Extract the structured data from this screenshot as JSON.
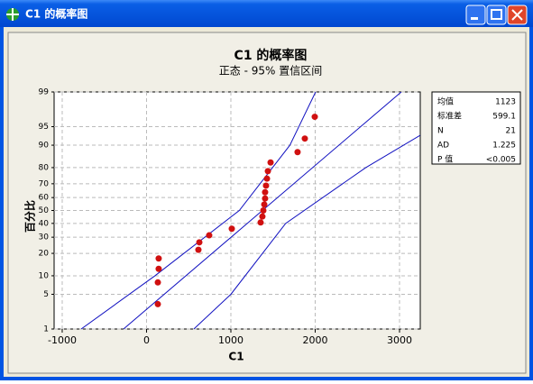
{
  "window": {
    "title": "C1 的概率图"
  },
  "chart_data": {
    "type": "probability",
    "title": "C1 的概率图",
    "subtitle": "正态 - 95% 置信区间",
    "x_label": "C1",
    "y_label": "百分比",
    "xlim": [
      -1096,
      3246
    ],
    "xticks": [
      -1000,
      0,
      1000,
      2000,
      3000
    ],
    "ylim": [
      1,
      99
    ],
    "yticks": [
      1,
      5,
      10,
      20,
      30,
      40,
      50,
      60,
      70,
      80,
      90,
      95,
      99
    ],
    "y_scale": "normal-probability",
    "grid": true,
    "points": {
      "color": "#d01010",
      "x": [
        134,
        134,
        144,
        144,
        615,
        626,
        743,
        1011,
        1353,
        1374,
        1385,
        1396,
        1406,
        1406,
        1417,
        1428,
        1439,
        1471,
        1791,
        1877,
        1995
      ],
      "values": [
        3.3,
        7.9,
        12.6,
        17.3,
        22.0,
        26.6,
        31.3,
        36.0,
        40.7,
        45.3,
        50.0,
        54.7,
        59.3,
        64.0,
        68.7,
        73.4,
        78.0,
        82.7,
        87.4,
        92.1,
        96.7
      ]
    },
    "lines": [
      {
        "color": "#1010c0",
        "x": [
          -775,
          100,
          1100,
          1700,
          2005
        ],
        "values": [
          1,
          10,
          50,
          90,
          99
        ]
      },
      {
        "color": "#1010c0",
        "x": [
          -273,
          3021
        ],
        "values": [
          1,
          99
        ]
      },
      {
        "color": "#1010c0",
        "x": [
          561,
          1000,
          1650,
          2600,
          3246
        ],
        "values": [
          1,
          5,
          40,
          80,
          93
        ]
      }
    ],
    "stats": [
      {
        "label": "均值",
        "value": 1123
      },
      {
        "label": "标准差",
        "value": 599.1
      },
      {
        "label": "N",
        "value": 21
      },
      {
        "label": "AD",
        "value": 1.225
      },
      {
        "label": "P 值",
        "value": "<0.005"
      }
    ]
  }
}
